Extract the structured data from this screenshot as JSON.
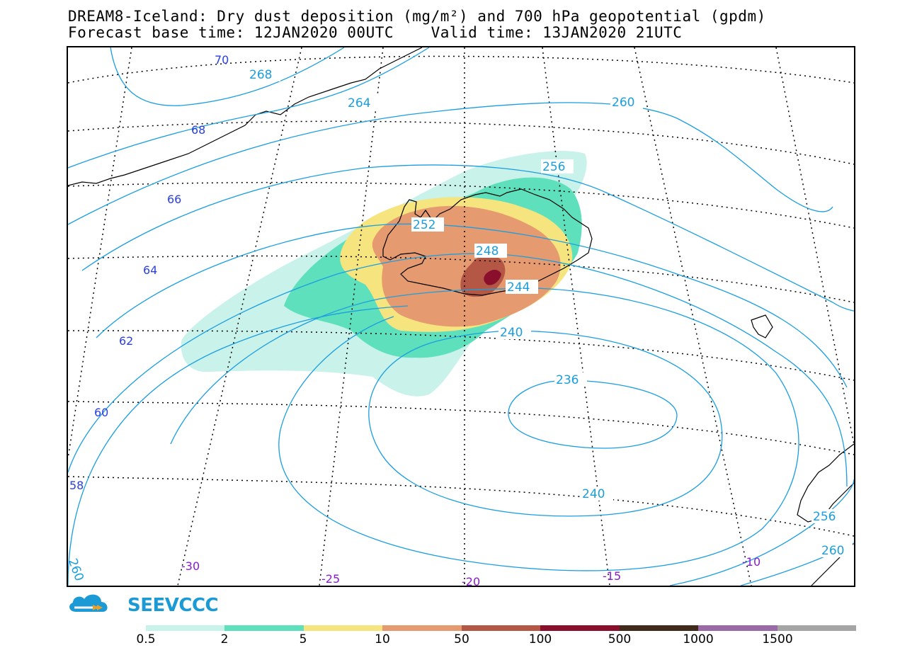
{
  "title": {
    "line1": "DREAM8-Iceland: Dry dust deposition (mg/m²) and 700 hPa geopotential (gpdm)",
    "line2": "Forecast base time: 12JAN2020 00UTC    Valid time: 13JAN2020 21UTC"
  },
  "logo": {
    "text": "SEEVCCC",
    "icon": "cloud-arrow-icon",
    "color": "#1b9ad6"
  },
  "colors": {
    "contour": "#1a9ee0",
    "lat_label": "#2a3fe0",
    "lon_label": "#8a1ad6",
    "coast": "#000000"
  },
  "contour_labels": [
    {
      "id": "268",
      "text": "268"
    },
    {
      "id": "264",
      "text": "264"
    },
    {
      "id": "260a",
      "text": "260"
    },
    {
      "id": "256a",
      "text": "256"
    },
    {
      "id": "252",
      "text": "252"
    },
    {
      "id": "248",
      "text": "248"
    },
    {
      "id": "244",
      "text": "244"
    },
    {
      "id": "240a",
      "text": "240"
    },
    {
      "id": "236",
      "text": "236"
    },
    {
      "id": "240b",
      "text": "240"
    },
    {
      "id": "256b",
      "text": "256"
    },
    {
      "id": "260b",
      "text": "260"
    },
    {
      "id": "260c",
      "text": "260"
    }
  ],
  "lat_labels": [
    "70",
    "68",
    "66",
    "64",
    "62",
    "60",
    "58"
  ],
  "lon_labels": [
    "-30",
    "-25",
    "-20",
    "-15",
    "-10"
  ],
  "legend": {
    "colors": [
      "#c8f2ea",
      "#5ee0bd",
      "#f6e47f",
      "#e69a70",
      "#b45744",
      "#8a0f2c",
      "#3f2a1c",
      "#9a6aa6",
      "#a5a5a5"
    ],
    "labels": [
      "0.5",
      "2",
      "5",
      "10",
      "50",
      "100",
      "500",
      "1000",
      "1500"
    ]
  }
}
